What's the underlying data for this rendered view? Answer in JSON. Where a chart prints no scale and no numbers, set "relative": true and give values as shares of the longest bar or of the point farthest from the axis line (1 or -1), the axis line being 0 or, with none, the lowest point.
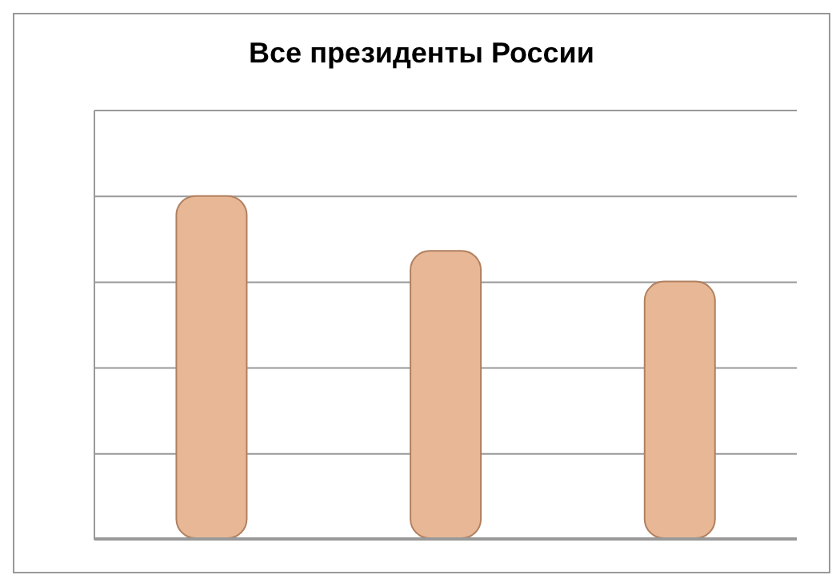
{
  "chart_data": {
    "type": "bar",
    "title": "Все президенты России",
    "relative": true,
    "categories": [
      null,
      null,
      null
    ],
    "values": [
      1,
      0.84,
      0.75
    ],
    "color": "#e8b896",
    "grid": "y"
  }
}
